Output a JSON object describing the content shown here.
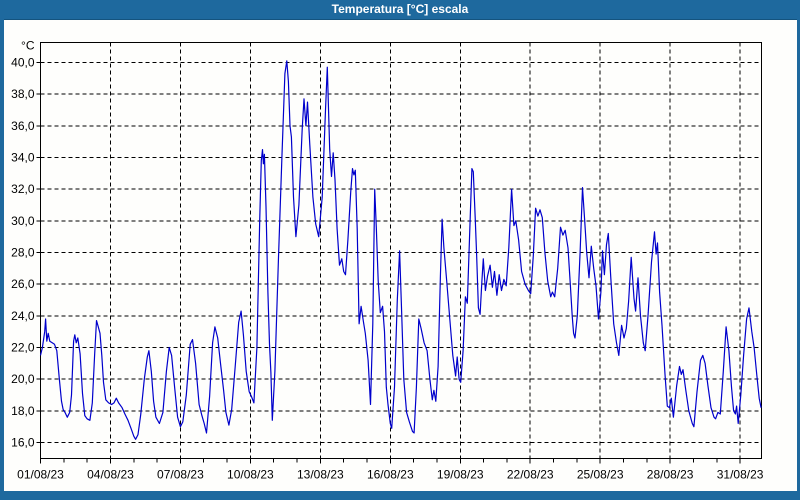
{
  "window": {
    "title": "Temperatura [°C] escala",
    "titlebar_color": "#1E699E",
    "title_text_color": "#FFFFFF"
  },
  "chart_data": {
    "type": "line",
    "title": "Temperatura [°C] escala",
    "legend": "none",
    "grid": "dashed",
    "background": "#FEFEFC",
    "line_color": "#0000CC",
    "axis_color": "#000000",
    "y_axis": {
      "unit": "°C",
      "min": 16,
      "max": 40,
      "step": 2,
      "tick_labels": [
        "16,0",
        "18,0",
        "20,0",
        "22,0",
        "24,0",
        "26,0",
        "28,0",
        "30,0",
        "32,0",
        "34,0",
        "36,0",
        "38,0",
        "40,0"
      ]
    },
    "x_axis": {
      "tick_labels": [
        "01/08/23",
        "04/08/23",
        "07/08/23",
        "10/08/23",
        "13/08/23",
        "16/08/23",
        "19/08/23",
        "22/08/23",
        "25/08/23",
        "28/08/23",
        "31/08/23"
      ],
      "label_day_offsets": [
        0,
        3,
        6,
        9,
        12,
        15,
        18,
        21,
        24,
        27,
        30
      ],
      "minor_tick_every_days": 1,
      "span_days": 30.92
    },
    "series": [
      {
        "name": "Temperatura",
        "x_unit": "days_since_01/08/23",
        "points": [
          [
            0.0,
            21.5
          ],
          [
            0.08,
            22.0
          ],
          [
            0.18,
            23.0
          ],
          [
            0.22,
            23.8
          ],
          [
            0.27,
            22.4
          ],
          [
            0.33,
            22.9
          ],
          [
            0.4,
            22.4
          ],
          [
            0.5,
            22.3
          ],
          [
            0.6,
            22.2
          ],
          [
            0.7,
            21.8
          ],
          [
            0.8,
            20.1
          ],
          [
            0.9,
            18.6
          ],
          [
            0.97,
            18.1
          ],
          [
            1.05,
            17.9
          ],
          [
            1.15,
            17.6
          ],
          [
            1.25,
            17.9
          ],
          [
            1.33,
            19.0
          ],
          [
            1.42,
            22.4
          ],
          [
            1.47,
            22.8
          ],
          [
            1.53,
            22.3
          ],
          [
            1.6,
            22.6
          ],
          [
            1.7,
            21.6
          ],
          [
            1.8,
            19.1
          ],
          [
            1.9,
            17.7
          ],
          [
            2.0,
            17.5
          ],
          [
            2.12,
            17.4
          ],
          [
            2.22,
            18.5
          ],
          [
            2.32,
            21.5
          ],
          [
            2.4,
            23.7
          ],
          [
            2.48,
            23.3
          ],
          [
            2.55,
            22.9
          ],
          [
            2.63,
            21.5
          ],
          [
            2.7,
            19.8
          ],
          [
            2.8,
            18.7
          ],
          [
            2.92,
            18.5
          ],
          [
            3.05,
            18.4
          ],
          [
            3.15,
            18.5
          ],
          [
            3.25,
            18.8
          ],
          [
            3.35,
            18.5
          ],
          [
            3.5,
            18.2
          ],
          [
            3.62,
            17.8
          ],
          [
            3.75,
            17.4
          ],
          [
            3.88,
            16.9
          ],
          [
            4.0,
            16.4
          ],
          [
            4.08,
            16.2
          ],
          [
            4.18,
            16.5
          ],
          [
            4.3,
            17.8
          ],
          [
            4.45,
            20.0
          ],
          [
            4.58,
            21.4
          ],
          [
            4.65,
            21.8
          ],
          [
            4.75,
            20.5
          ],
          [
            4.85,
            18.6
          ],
          [
            4.95,
            17.6
          ],
          [
            5.1,
            17.2
          ],
          [
            5.25,
            17.9
          ],
          [
            5.4,
            20.5
          ],
          [
            5.52,
            22.0
          ],
          [
            5.62,
            21.5
          ],
          [
            5.75,
            19.5
          ],
          [
            5.88,
            17.6
          ],
          [
            6.0,
            17.0
          ],
          [
            6.1,
            17.3
          ],
          [
            6.25,
            19.0
          ],
          [
            6.42,
            22.2
          ],
          [
            6.52,
            22.5
          ],
          [
            6.65,
            21.0
          ],
          [
            6.8,
            18.4
          ],
          [
            6.92,
            17.7
          ],
          [
            7.02,
            17.2
          ],
          [
            7.12,
            16.6
          ],
          [
            7.25,
            18.9
          ],
          [
            7.38,
            22.3
          ],
          [
            7.48,
            23.3
          ],
          [
            7.6,
            22.6
          ],
          [
            7.72,
            21.0
          ],
          [
            7.85,
            19.3
          ],
          [
            7.95,
            17.9
          ],
          [
            8.08,
            17.1
          ],
          [
            8.2,
            18.1
          ],
          [
            8.35,
            20.8
          ],
          [
            8.5,
            23.6
          ],
          [
            8.6,
            24.3
          ],
          [
            8.7,
            22.8
          ],
          [
            8.82,
            20.5
          ],
          [
            8.95,
            19.2
          ],
          [
            9.05,
            18.9
          ],
          [
            9.15,
            18.5
          ],
          [
            9.28,
            22.0
          ],
          [
            9.4,
            30.0
          ],
          [
            9.47,
            33.8
          ],
          [
            9.52,
            34.5
          ],
          [
            9.56,
            33.6
          ],
          [
            9.6,
            34.2
          ],
          [
            9.67,
            30.9
          ],
          [
            9.75,
            25.5
          ],
          [
            9.82,
            22.2
          ],
          [
            9.88,
            20.4
          ],
          [
            9.94,
            17.4
          ],
          [
            10.05,
            20.5
          ],
          [
            10.2,
            27.5
          ],
          [
            10.35,
            34.0
          ],
          [
            10.48,
            39.3
          ],
          [
            10.56,
            40.1
          ],
          [
            10.63,
            38.8
          ],
          [
            10.7,
            36.0
          ],
          [
            10.76,
            35.3
          ],
          [
            10.85,
            31.5
          ],
          [
            10.95,
            29.0
          ],
          [
            11.08,
            31.0
          ],
          [
            11.22,
            35.8
          ],
          [
            11.3,
            37.7
          ],
          [
            11.38,
            36.0
          ],
          [
            11.45,
            37.5
          ],
          [
            11.55,
            34.8
          ],
          [
            11.68,
            31.5
          ],
          [
            11.8,
            29.8
          ],
          [
            11.93,
            29.0
          ],
          [
            12.08,
            31.5
          ],
          [
            12.22,
            37.0
          ],
          [
            12.3,
            39.7
          ],
          [
            12.4,
            34.5
          ],
          [
            12.48,
            32.8
          ],
          [
            12.55,
            34.3
          ],
          [
            12.63,
            32.6
          ],
          [
            12.72,
            29.5
          ],
          [
            12.82,
            27.2
          ],
          [
            12.92,
            27.6
          ],
          [
            13.0,
            26.8
          ],
          [
            13.08,
            26.6
          ],
          [
            13.18,
            28.8
          ],
          [
            13.3,
            31.8
          ],
          [
            13.38,
            33.3
          ],
          [
            13.44,
            32.9
          ],
          [
            13.5,
            33.2
          ],
          [
            13.58,
            29.5
          ],
          [
            13.66,
            23.5
          ],
          [
            13.75,
            24.6
          ],
          [
            13.85,
            23.6
          ],
          [
            13.93,
            22.9
          ],
          [
            14.05,
            21.2
          ],
          [
            14.15,
            18.4
          ],
          [
            14.25,
            23.5
          ],
          [
            14.33,
            32.0
          ],
          [
            14.4,
            29.6
          ],
          [
            14.48,
            26.2
          ],
          [
            14.57,
            24.2
          ],
          [
            14.67,
            24.6
          ],
          [
            14.75,
            23.0
          ],
          [
            14.83,
            19.5
          ],
          [
            14.9,
            18.4
          ],
          [
            15.0,
            17.2
          ],
          [
            15.06,
            16.9
          ],
          [
            15.18,
            19.5
          ],
          [
            15.3,
            25.0
          ],
          [
            15.4,
            28.1
          ],
          [
            15.48,
            24.5
          ],
          [
            15.58,
            20.0
          ],
          [
            15.7,
            17.9
          ],
          [
            15.82,
            17.3
          ],
          [
            15.95,
            16.7
          ],
          [
            16.02,
            16.6
          ],
          [
            16.12,
            19.5
          ],
          [
            16.22,
            23.8
          ],
          [
            16.32,
            23.2
          ],
          [
            16.45,
            22.3
          ],
          [
            16.58,
            21.8
          ],
          [
            16.7,
            20.0
          ],
          [
            16.8,
            18.7
          ],
          [
            16.87,
            19.3
          ],
          [
            16.95,
            18.6
          ],
          [
            17.05,
            20.8
          ],
          [
            17.15,
            26.5
          ],
          [
            17.22,
            30.1
          ],
          [
            17.3,
            28.3
          ],
          [
            17.42,
            26.2
          ],
          [
            17.55,
            23.8
          ],
          [
            17.68,
            21.5
          ],
          [
            17.8,
            20.2
          ],
          [
            17.87,
            21.4
          ],
          [
            17.95,
            20.0
          ],
          [
            18.02,
            19.8
          ],
          [
            18.12,
            21.8
          ],
          [
            18.22,
            25.2
          ],
          [
            18.3,
            24.8
          ],
          [
            18.42,
            30.0
          ],
          [
            18.5,
            33.3
          ],
          [
            18.56,
            33.1
          ],
          [
            18.64,
            30.2
          ],
          [
            18.7,
            27.9
          ],
          [
            18.78,
            24.5
          ],
          [
            18.85,
            24.1
          ],
          [
            18.93,
            26.2
          ],
          [
            18.99,
            27.6
          ],
          [
            19.08,
            25.6
          ],
          [
            19.17,
            26.5
          ],
          [
            19.28,
            27.2
          ],
          [
            19.38,
            25.8
          ],
          [
            19.47,
            26.8
          ],
          [
            19.57,
            25.3
          ],
          [
            19.67,
            26.6
          ],
          [
            19.77,
            25.6
          ],
          [
            19.87,
            26.3
          ],
          [
            19.97,
            25.9
          ],
          [
            20.08,
            28.3
          ],
          [
            20.2,
            32.0
          ],
          [
            20.3,
            29.7
          ],
          [
            20.38,
            30.0
          ],
          [
            20.5,
            28.8
          ],
          [
            20.63,
            26.8
          ],
          [
            20.78,
            26.0
          ],
          [
            20.92,
            25.6
          ],
          [
            21.02,
            25.4
          ],
          [
            21.13,
            27.8
          ],
          [
            21.23,
            30.8
          ],
          [
            21.33,
            30.3
          ],
          [
            21.42,
            30.7
          ],
          [
            21.52,
            30.2
          ],
          [
            21.63,
            28.0
          ],
          [
            21.75,
            26.2
          ],
          [
            21.88,
            25.2
          ],
          [
            21.95,
            25.5
          ],
          [
            22.05,
            25.2
          ],
          [
            22.18,
            27.0
          ],
          [
            22.3,
            29.6
          ],
          [
            22.4,
            29.1
          ],
          [
            22.5,
            29.4
          ],
          [
            22.62,
            28.3
          ],
          [
            22.72,
            26.0
          ],
          [
            22.8,
            24.0
          ],
          [
            22.86,
            22.9
          ],
          [
            22.92,
            22.6
          ],
          [
            23.02,
            24.0
          ],
          [
            23.14,
            28.0
          ],
          [
            23.24,
            32.1
          ],
          [
            23.33,
            30.1
          ],
          [
            23.42,
            28.0
          ],
          [
            23.52,
            26.4
          ],
          [
            23.62,
            28.4
          ],
          [
            23.72,
            27.0
          ],
          [
            23.82,
            25.9
          ],
          [
            23.93,
            23.8
          ],
          [
            24.03,
            25.5
          ],
          [
            24.1,
            28.1
          ],
          [
            24.18,
            26.6
          ],
          [
            24.27,
            28.5
          ],
          [
            24.35,
            29.2
          ],
          [
            24.45,
            26.5
          ],
          [
            24.58,
            23.5
          ],
          [
            24.7,
            22.3
          ],
          [
            24.8,
            21.5
          ],
          [
            24.92,
            23.4
          ],
          [
            25.02,
            22.6
          ],
          [
            25.12,
            23.2
          ],
          [
            25.22,
            24.9
          ],
          [
            25.33,
            27.7
          ],
          [
            25.45,
            25.1
          ],
          [
            25.52,
            24.3
          ],
          [
            25.62,
            26.4
          ],
          [
            25.73,
            24.0
          ],
          [
            25.85,
            22.3
          ],
          [
            25.93,
            21.8
          ],
          [
            26.05,
            24.0
          ],
          [
            26.2,
            27.4
          ],
          [
            26.33,
            29.3
          ],
          [
            26.4,
            27.9
          ],
          [
            26.46,
            28.6
          ],
          [
            26.55,
            25.5
          ],
          [
            26.65,
            23.4
          ],
          [
            26.78,
            20.3
          ],
          [
            26.88,
            18.3
          ],
          [
            26.97,
            18.2
          ],
          [
            27.05,
            18.8
          ],
          [
            27.14,
            17.6
          ],
          [
            27.28,
            19.6
          ],
          [
            27.4,
            20.8
          ],
          [
            27.48,
            20.3
          ],
          [
            27.55,
            20.6
          ],
          [
            27.67,
            19.3
          ],
          [
            27.8,
            18.0
          ],
          [
            27.95,
            17.2
          ],
          [
            28.02,
            17.0
          ],
          [
            28.15,
            19.2
          ],
          [
            28.3,
            21.2
          ],
          [
            28.4,
            21.5
          ],
          [
            28.5,
            21.0
          ],
          [
            28.62,
            19.6
          ],
          [
            28.75,
            18.2
          ],
          [
            28.88,
            17.6
          ],
          [
            28.95,
            17.5
          ],
          [
            29.05,
            17.9
          ],
          [
            29.15,
            17.8
          ],
          [
            29.28,
            20.5
          ],
          [
            29.4,
            23.3
          ],
          [
            29.52,
            21.8
          ],
          [
            29.63,
            19.5
          ],
          [
            29.72,
            18.0
          ],
          [
            29.8,
            17.8
          ],
          [
            29.85,
            18.3
          ],
          [
            29.92,
            17.2
          ],
          [
            30.03,
            19.0
          ],
          [
            30.15,
            21.5
          ],
          [
            30.28,
            23.8
          ],
          [
            30.38,
            24.5
          ],
          [
            30.5,
            23.0
          ],
          [
            30.6,
            22.0
          ],
          [
            30.72,
            20.2
          ],
          [
            30.82,
            18.8
          ],
          [
            30.9,
            18.2
          ]
        ]
      }
    ]
  }
}
